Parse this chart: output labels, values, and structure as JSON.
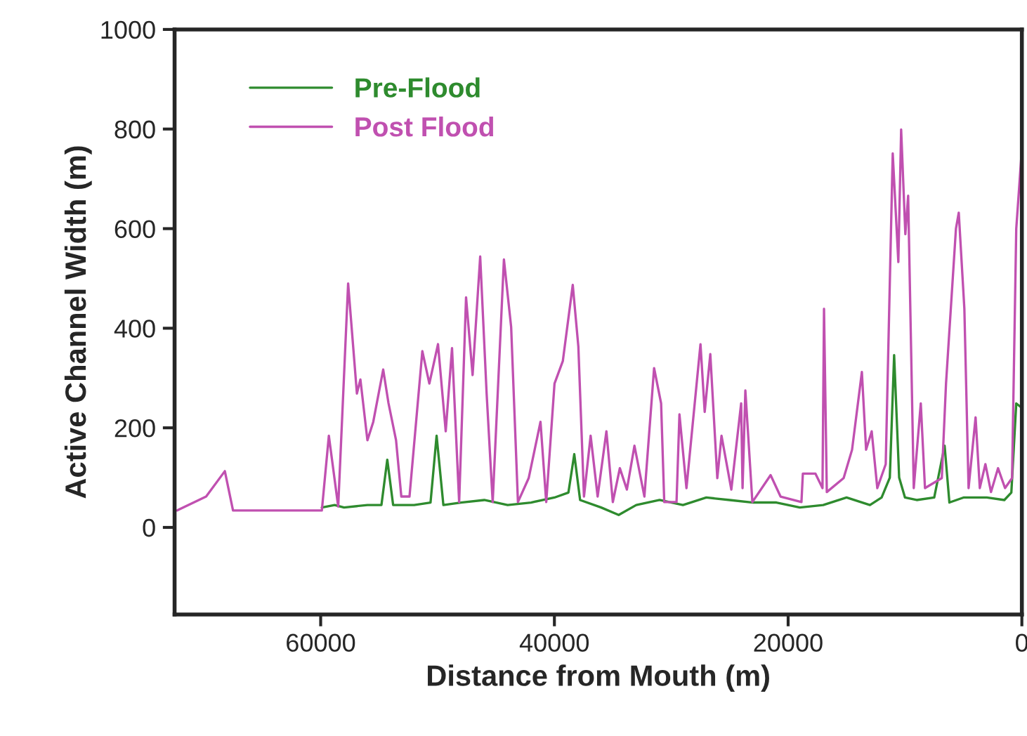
{
  "chart_data": {
    "type": "line",
    "xlabel": "Distance from Mouth (m)",
    "ylabel": "Active Channel Width (m)",
    "xlim": [
      72500,
      0
    ],
    "xticks": [
      60000,
      40000,
      20000,
      0
    ],
    "ylim": [
      -175,
      1000
    ],
    "yticks": [
      0,
      200,
      400,
      600,
      800,
      1000
    ],
    "grid": false,
    "legend": "top left",
    "marker": "none",
    "line_style": "solid",
    "series": [
      {
        "name": "Pre-Flood",
        "color": "#2e8b2e",
        "x": [
          59900,
          59300,
          58800,
          58000,
          56000,
          54800,
          54300,
          53800,
          52000,
          50600,
          50080,
          49500,
          48000,
          46000,
          44000,
          42000,
          40000,
          38800,
          38300,
          37800,
          36000,
          34500,
          33000,
          31000,
          29000,
          27000,
          25000,
          23000,
          21000,
          19000,
          17000,
          15000,
          13000,
          12000,
          11300,
          10930,
          10500,
          10000,
          9000,
          7500,
          6610,
          6200,
          5000,
          3000,
          1500,
          900,
          480,
          0
        ],
        "values": [
          40,
          null,
          45,
          40,
          45,
          45,
          136,
          45,
          45,
          50,
          184,
          45,
          50,
          55,
          45,
          50,
          60,
          70,
          147,
          55,
          40,
          25,
          45,
          55,
          45,
          60,
          55,
          50,
          50,
          40,
          45,
          60,
          45,
          60,
          100,
          346,
          100,
          60,
          55,
          60,
          164,
          50,
          60,
          60,
          55,
          70,
          249,
          240
        ]
      },
      {
        "name": "Post Flood",
        "color": "#c050b0",
        "x": [
          72300,
          69800,
          68200,
          67500,
          62000,
          59900,
          59300,
          58500,
          57650,
          56900,
          56600,
          56000,
          55500,
          54650,
          54200,
          53550,
          53100,
          52400,
          51300,
          50700,
          49960,
          49300,
          48760,
          48150,
          47560,
          47000,
          46350,
          45800,
          45280,
          44320,
          43700,
          43120,
          42200,
          41190,
          40700,
          39990,
          39280,
          38430,
          37950,
          37470,
          36900,
          36300,
          35550,
          35000,
          34400,
          33800,
          33150,
          32300,
          31470,
          30870,
          30600,
          29550,
          29300,
          28700,
          27500,
          27140,
          26660,
          26060,
          25700,
          24860,
          24020,
          23900,
          23660,
          23060,
          21500,
          20650,
          18860,
          18740,
          17660,
          17060,
          16930,
          16690,
          15250,
          14530,
          13690,
          13330,
          12850,
          12370,
          11650,
          11050,
          10570,
          10330,
          9970,
          9730,
          9250,
          8650,
          8290,
          6850,
          6490,
          5640,
          5400,
          4920,
          4560,
          3960,
          3600,
          3120,
          2640,
          2040,
          1440,
          840,
          480,
          0
        ],
        "values": [
          34,
          62,
          113,
          34,
          34,
          34,
          184,
          42,
          490,
          269,
          297,
          175,
          212,
          317,
          250,
          175,
          62,
          62,
          354,
          289,
          368,
          193,
          360,
          51,
          462,
          306,
          544,
          269,
          51,
          538,
          402,
          51,
          99,
          212,
          51,
          289,
          334,
          487,
          363,
          62,
          184,
          62,
          193,
          51,
          119,
          76,
          164,
          62,
          320,
          249,
          51,
          51,
          227,
          79,
          368,
          232,
          348,
          99,
          184,
          76,
          249,
          79,
          275,
          51,
          105,
          62,
          51,
          108,
          108,
          79,
          439,
          71,
          99,
          156,
          312,
          156,
          193,
          79,
          127,
          751,
          533,
          799,
          589,
          666,
          79,
          249,
          79,
          99,
          289,
          600,
          632,
          439,
          79,
          221,
          79,
          127,
          71,
          119,
          79,
          99,
          600,
          760
        ]
      }
    ]
  }
}
